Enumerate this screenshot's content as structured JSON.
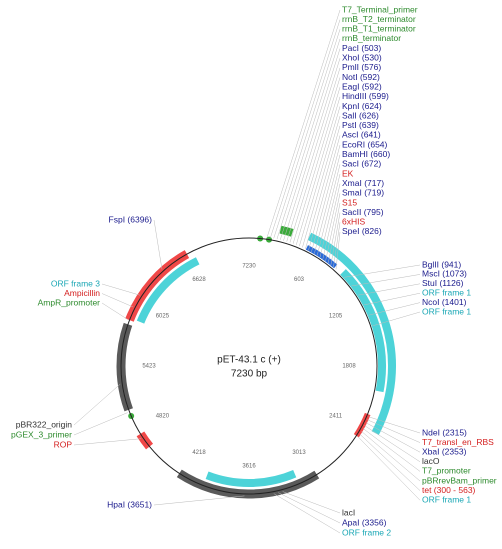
{
  "map": {
    "name": "pET-43.1 c (+)",
    "length": "7230 bp",
    "ruler": [
      7230,
      603,
      1205,
      1808,
      2411,
      3013,
      3616,
      4218,
      4820,
      5423,
      6025,
      6628
    ],
    "label_groups": [
      {
        "labels": [
          {
            "text": "T7_Terminal_primer",
            "color": "#2e8b2e"
          },
          {
            "text": "rrnB_T2_terminator",
            "color": "#2e8b2e"
          },
          {
            "text": "rrnB_T1_terminator",
            "color": "#2e8b2e"
          },
          {
            "text": "rrnB_terminator",
            "color": "#2e8b2e"
          },
          {
            "text": "PacI (503)",
            "color": "#1a1a8c"
          },
          {
            "text": "XhoI (530)",
            "color": "#1a1a8c"
          },
          {
            "text": "PmlI (576)",
            "color": "#1a1a8c"
          },
          {
            "text": "NotI (592)",
            "color": "#1a1a8c"
          },
          {
            "text": "EagI (592)",
            "color": "#1a1a8c"
          },
          {
            "text": "HindIII (599)",
            "color": "#1a1a8c"
          },
          {
            "text": "KpnI (624)",
            "color": "#1a1a8c"
          },
          {
            "text": "SalI (626)",
            "color": "#1a1a8c"
          },
          {
            "text": "PstI (639)",
            "color": "#1a1a8c"
          },
          {
            "text": "AscI (641)",
            "color": "#1a1a8c"
          },
          {
            "text": "EcoRI (654)",
            "color": "#1a1a8c"
          },
          {
            "text": "BamHI (660)",
            "color": "#1a1a8c"
          },
          {
            "text": "SacI (672)",
            "color": "#1a1a8c"
          },
          {
            "text": "EK",
            "color": "#d42020"
          },
          {
            "text": "XmaI (717)",
            "color": "#1a1a8c"
          },
          {
            "text": "SmaI (719)",
            "color": "#1a1a8c"
          },
          {
            "text": "S15",
            "color": "#d42020"
          },
          {
            "text": "SacII (795)",
            "color": "#1a1a8c"
          },
          {
            "text": "6xHIS",
            "color": "#d42020"
          },
          {
            "text": "SpeI (826)",
            "color": "#1a1a8c"
          }
        ]
      },
      {
        "labels": [
          {
            "text": "BglII (941)",
            "color": "#1a1a8c"
          },
          {
            "text": "MscI (1073)",
            "color": "#1a1a8c"
          },
          {
            "text": "StuI (1126)",
            "color": "#1a1a8c"
          },
          {
            "text": "ORF frame 1",
            "color": "#1aa7b5"
          },
          {
            "text": "NcoI (1401)",
            "color": "#1a1a8c"
          },
          {
            "text": "ORF frame 1",
            "color": "#1aa7b5"
          }
        ]
      },
      {
        "labels": [
          {
            "text": "NdeI (2315)",
            "color": "#1a1a8c"
          },
          {
            "text": "T7_transl_en_RBS",
            "color": "#d42020"
          },
          {
            "text": "XbaI (2353)",
            "color": "#1a1a8c"
          },
          {
            "text": "lacO",
            "color": "#333333"
          },
          {
            "text": "T7_promoter",
            "color": "#2e8b2e"
          },
          {
            "text": "pBRrevBam_primer",
            "color": "#2e8b2e"
          },
          {
            "text": "tet (300 - 563)",
            "color": "#d42020"
          },
          {
            "text": "ORF frame 1",
            "color": "#1aa7b5"
          }
        ]
      },
      {
        "labels": [
          {
            "text": "lacI",
            "color": "#333333"
          },
          {
            "text": "ApaI (3356)",
            "color": "#1a1a8c"
          },
          {
            "text": "ORF frame 2",
            "color": "#1aa7b5"
          }
        ]
      },
      {
        "labels": [
          {
            "text": "HpaI (3651)",
            "color": "#1a1a8c"
          }
        ]
      },
      {
        "labels": [
          {
            "text": "FspI (6396)",
            "color": "#1a1a8c"
          }
        ]
      },
      {
        "labels": [
          {
            "text": "ORF frame 3",
            "color": "#1aa7b5"
          },
          {
            "text": "Ampicillin",
            "color": "#d42020"
          },
          {
            "text": "AmpR_promoter",
            "color": "#2e8b2e"
          }
        ]
      },
      {
        "labels": [
          {
            "text": "pBR322_origin",
            "color": "#333333"
          },
          {
            "text": "pGEX_3_primer",
            "color": "#2e8b2e"
          },
          {
            "text": "ROP",
            "color": "#d42020"
          }
        ]
      }
    ]
  }
}
